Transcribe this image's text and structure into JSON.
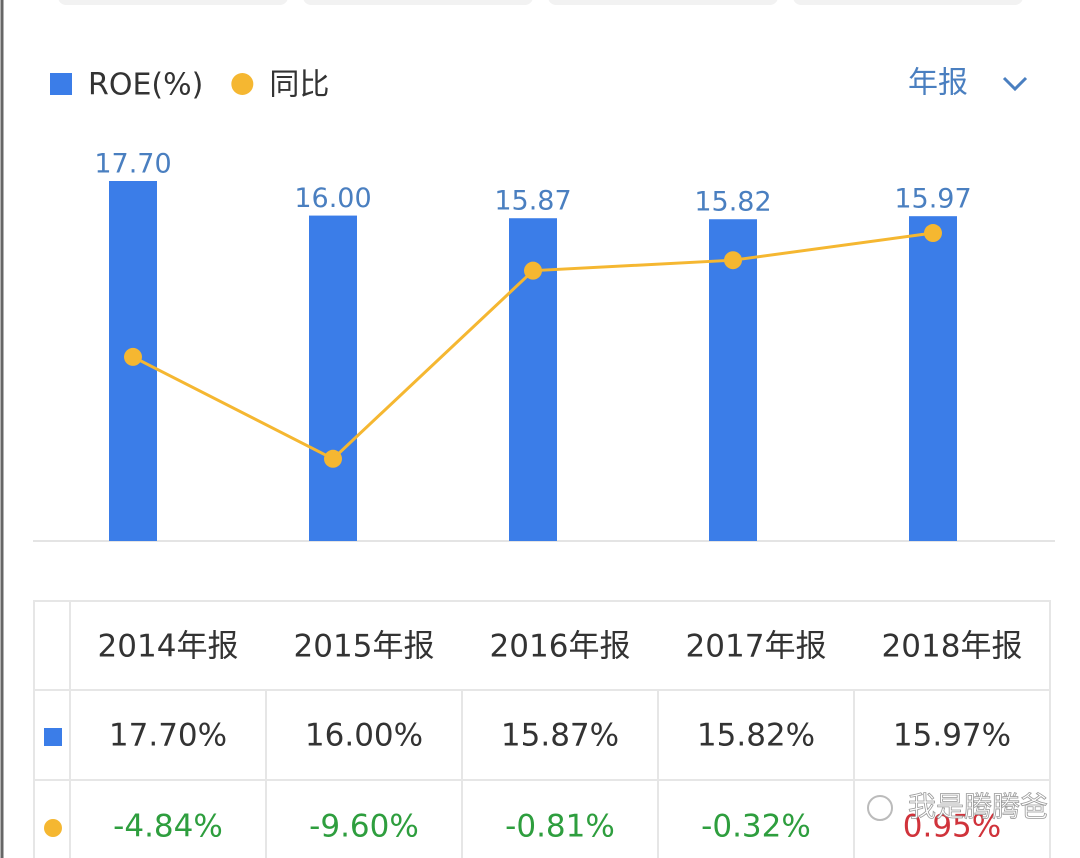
{
  "chart_data": {
    "type": "bar",
    "dropdown": "年报",
    "categories": [
      "2014年报",
      "2015年报",
      "2016年报",
      "2017年报",
      "2018年报"
    ],
    "ylim": [
      0,
      17.7
    ],
    "y2lim": [
      -13.44,
      3.38
    ],
    "series": [
      {
        "name": "ROE(%)",
        "type": "bar",
        "color": "#3b7de8",
        "label_color": "#4a7fc0",
        "values": [
          17.7,
          16.0,
          15.87,
          15.82,
          15.97
        ],
        "value_labels": [
          "17.70",
          "16.00",
          "15.87",
          "15.82",
          "15.97"
        ]
      },
      {
        "name": "同比",
        "type": "line",
        "axis": "y2",
        "color": "#f5b731",
        "values": [
          -4.84,
          -9.6,
          -0.81,
          -0.32,
          0.95
        ]
      }
    ]
  },
  "table": {
    "rows": [
      {
        "cells": [
          "17.70%",
          "16.00%",
          "15.87%",
          "15.82%",
          "15.97%"
        ],
        "colors": [
          "#333333",
          "#333333",
          "#333333",
          "#333333",
          "#333333"
        ]
      },
      {
        "cells": [
          "-4.84%",
          "-9.60%",
          "-0.81%",
          "-0.32%",
          "0.95%"
        ],
        "colors": [
          "#2e9e3e",
          "#2e9e3e",
          "#2e9e3e",
          "#2e9e3e",
          "#d0333b"
        ]
      }
    ]
  },
  "watermark": "我是腾腾爸"
}
